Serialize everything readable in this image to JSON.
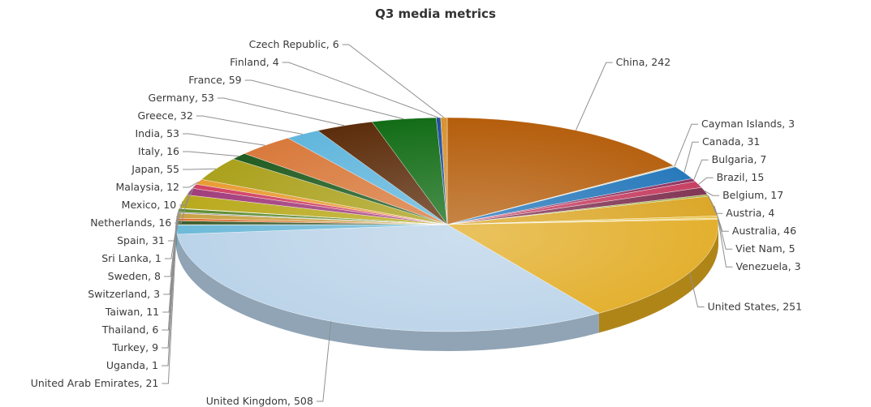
{
  "chart_data": {
    "type": "pie",
    "title": "Q3 media metrics",
    "slices": [
      {
        "label": "China",
        "value": 242,
        "color": "#b35a06"
      },
      {
        "label": "Cayman Islands",
        "value": 3,
        "color": "#d8d8c0"
      },
      {
        "label": "Canada",
        "value": 31,
        "color": "#1c72b8"
      },
      {
        "label": "Bulgaria",
        "value": 7,
        "color": "#8a2a5a"
      },
      {
        "label": "Brazil",
        "value": 15,
        "color": "#c4355a"
      },
      {
        "label": "Belgium",
        "value": 17,
        "color": "#7a2a4a"
      },
      {
        "label": "Austria",
        "value": 4,
        "color": "#9aaa3a"
      },
      {
        "label": "Australia",
        "value": 46,
        "color": "#d9a21b"
      },
      {
        "label": "Viet Nam",
        "value": 5,
        "color": "#e8c040"
      },
      {
        "label": "Venezuela",
        "value": 3,
        "color": "#ecd070"
      },
      {
        "label": "United States",
        "value": 251,
        "color": "#e1aa1f"
      },
      {
        "label": "United Kingdom",
        "value": 508,
        "color": "#b9d2e8"
      },
      {
        "label": "United Arab Emirates",
        "value": 21,
        "color": "#6ab8d8"
      },
      {
        "label": "Uganda",
        "value": 1,
        "color": "#2a6a2a"
      },
      {
        "label": "Turkey",
        "value": 9,
        "color": "#3a5a2a"
      },
      {
        "label": "Thailand",
        "value": 6,
        "color": "#e07030"
      },
      {
        "label": "Taiwan",
        "value": 11,
        "color": "#c8a040"
      },
      {
        "label": "Switzerland",
        "value": 3,
        "color": "#a0a0a0"
      },
      {
        "label": "Sweden",
        "value": 8,
        "color": "#5a8a2a"
      },
      {
        "label": "Sri Lanka",
        "value": 1,
        "color": "#d0d0a0"
      },
      {
        "label": "Spain",
        "value": 31,
        "color": "#b8a818"
      },
      {
        "label": "Netherlands",
        "value": 16,
        "color": "#a03a7a"
      },
      {
        "label": "Mexico",
        "value": 10,
        "color": "#d04060"
      },
      {
        "label": "Malaysia",
        "value": 12,
        "color": "#e89a30"
      },
      {
        "label": "Japan",
        "value": 55,
        "color": "#aaa01a"
      },
      {
        "label": "Italy",
        "value": 16,
        "color": "#1e5a1e"
      },
      {
        "label": "India",
        "value": 53,
        "color": "#d8783a"
      },
      {
        "label": "Greece",
        "value": 32,
        "color": "#5fb5dc"
      },
      {
        "label": "Germany",
        "value": 53,
        "color": "#5a2a08"
      },
      {
        "label": "France",
        "value": 59,
        "color": "#0e6a12"
      },
      {
        "label": "Finland",
        "value": 4,
        "color": "#1a4aa0"
      },
      {
        "label": "Czech Republic",
        "value": 6,
        "color": "#d8902a"
      }
    ]
  }
}
